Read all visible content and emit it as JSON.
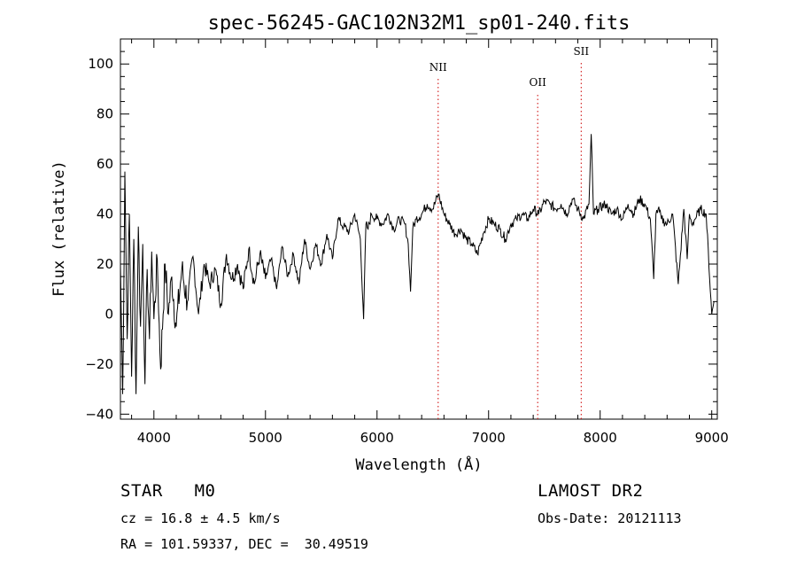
{
  "chart_data": {
    "type": "line",
    "title": "spec-56245-GAC102N32M1_sp01-240.fits",
    "xlabel": "Wavelength (Å)",
    "ylabel": "Flux (relative)",
    "xlim": [
      3700,
      9050
    ],
    "ylim": [
      -42,
      110
    ],
    "xticks": [
      4000,
      5000,
      6000,
      7000,
      8000,
      9000
    ],
    "yticks": [
      -40,
      -20,
      0,
      20,
      40,
      60,
      80,
      100
    ],
    "grid": false,
    "series": [
      {
        "x": [
          3700,
          3720,
          3740,
          3760,
          3780,
          3800,
          3820,
          3840,
          3860,
          3880,
          3900,
          3920,
          3940,
          3960,
          3980,
          4000,
          4030,
          4060,
          4100,
          4130,
          4160,
          4200,
          4250,
          4300,
          4350,
          4400,
          4450,
          4500,
          4550,
          4600,
          4650,
          4700,
          4750,
          4800,
          4850,
          4900,
          4950,
          5000,
          5050,
          5100,
          5150,
          5200,
          5250,
          5300,
          5350,
          5400,
          5450,
          5500,
          5550,
          5600,
          5650,
          5700,
          5750,
          5800,
          5850,
          5880,
          5900,
          5920,
          5950,
          6000,
          6050,
          6100,
          6150,
          6200,
          6250,
          6280,
          6300,
          6320,
          6350,
          6400,
          6450,
          6500,
          6550,
          6600,
          6650,
          6700,
          6750,
          6800,
          6850,
          6900,
          6950,
          7000,
          7050,
          7100,
          7150,
          7200,
          7250,
          7300,
          7350,
          7400,
          7450,
          7500,
          7550,
          7600,
          7650,
          7700,
          7750,
          7800,
          7850,
          7900,
          7920,
          7940,
          7980,
          8050,
          8100,
          8150,
          8200,
          8250,
          8300,
          8350,
          8400,
          8450,
          8480,
          8500,
          8520,
          8550,
          8600,
          8650,
          8700,
          8750,
          8780,
          8800,
          8820,
          8850,
          8900,
          8950,
          9000,
          9020
        ],
        "values": [
          20,
          -32,
          57,
          -10,
          40,
          -25,
          30,
          -32,
          35,
          -5,
          28,
          -28,
          18,
          -10,
          25,
          -2,
          22,
          -22,
          20,
          0,
          15,
          -5,
          18,
          5,
          23,
          0,
          20,
          12,
          18,
          4,
          24,
          14,
          20,
          10,
          26,
          12,
          24,
          14,
          22,
          10,
          27,
          15,
          24,
          12,
          30,
          18,
          28,
          20,
          32,
          22,
          38,
          35,
          33,
          40,
          30,
          -2,
          36,
          34,
          40,
          38,
          36,
          40,
          34,
          38,
          36,
          28,
          9,
          34,
          38,
          40,
          44,
          42,
          48,
          40,
          36,
          32,
          34,
          30,
          28,
          24,
          32,
          38,
          36,
          34,
          30,
          36,
          38,
          40,
          38,
          42,
          40,
          45,
          44,
          42,
          44,
          40,
          46,
          42,
          38,
          44,
          72,
          40,
          42,
          44,
          40,
          42,
          38,
          44,
          40,
          46,
          44,
          38,
          14,
          40,
          42,
          38,
          36,
          40,
          12,
          42,
          22,
          40,
          36,
          38,
          42,
          40,
          0,
          5
        ],
        "color": "#000000"
      }
    ],
    "lines": [
      {
        "label": "NII",
        "x": 6548,
        "color": "#cc0000"
      },
      {
        "label": "OII",
        "x": 7440,
        "color": "#cc0000"
      },
      {
        "label": "SII",
        "x": 7830,
        "color": "#cc0000"
      }
    ]
  },
  "info": {
    "class_line": "STAR   M0",
    "cz_line": "cz = 16.8 ± 4.5 km/s",
    "radec_line": "RA = 101.59337, DEC =  30.49519",
    "survey": "LAMOST DR2",
    "obs_date": "Obs-Date: 20121113"
  }
}
